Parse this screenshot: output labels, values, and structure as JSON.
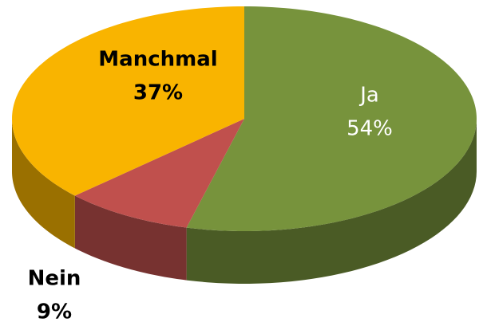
{
  "chart_data": {
    "type": "pie",
    "categories": [
      "Ja",
      "Nein",
      "Manchmal"
    ],
    "values": [
      54,
      9,
      37
    ],
    "value_labels": [
      "54%",
      "9%",
      "37%"
    ],
    "colors": [
      "#77933c",
      "#c0504d",
      "#f9b400"
    ]
  }
}
